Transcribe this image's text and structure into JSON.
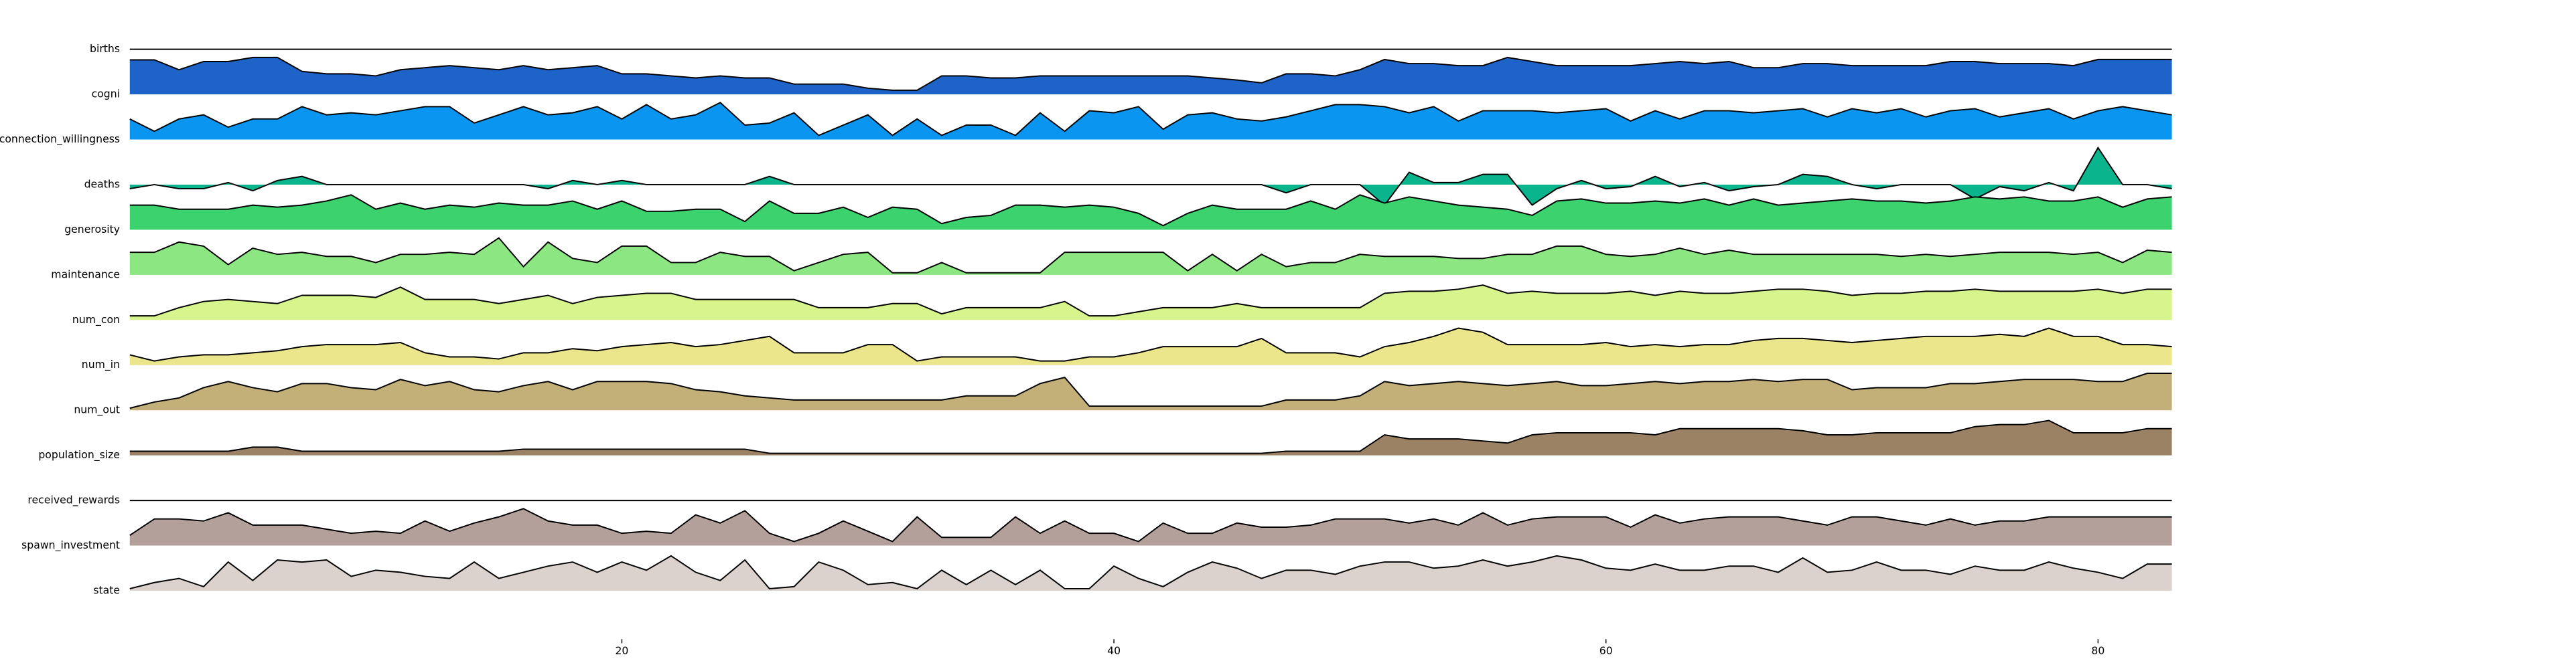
{
  "chart_data": {
    "type": "ridgeline",
    "x": [
      0,
      1,
      2,
      3,
      4,
      5,
      6,
      7,
      8,
      9,
      10,
      11,
      12,
      13,
      14,
      15,
      16,
      17,
      18,
      19,
      20,
      21,
      22,
      23,
      24,
      25,
      26,
      27,
      28,
      29,
      30,
      31,
      32,
      33,
      34,
      35,
      36,
      37,
      38,
      39,
      40,
      41,
      42,
      43,
      44,
      45,
      46,
      47,
      48,
      49,
      50,
      51,
      52,
      53,
      54,
      55,
      56,
      57,
      58,
      59,
      60,
      61,
      62,
      63,
      64,
      65,
      66,
      67,
      68,
      69,
      70,
      71,
      72,
      73,
      74,
      75,
      76,
      77,
      78,
      79,
      80,
      81,
      82,
      83
    ],
    "xlim": [
      0,
      83
    ],
    "xticks": [
      20,
      40,
      60,
      80
    ],
    "ylim": [
      0,
      10
    ],
    "series": [
      {
        "name": "births",
        "color": "#1f5fc8",
        "values": [
          0,
          0,
          0,
          0,
          0,
          0,
          0,
          0,
          0,
          0,
          0,
          0,
          0,
          0,
          0,
          0,
          0,
          0,
          0,
          0,
          0,
          0,
          0,
          0,
          0,
          0,
          0,
          0,
          0,
          0,
          0,
          0,
          0,
          0,
          0,
          0,
          0,
          0,
          0,
          0,
          0,
          0,
          0,
          0,
          0,
          0,
          0,
          0,
          0,
          0,
          0,
          0,
          0,
          0,
          0,
          0,
          0,
          0,
          0,
          0,
          0,
          0,
          0,
          0,
          0,
          0,
          0,
          0,
          0,
          0,
          0,
          0,
          0,
          0,
          0,
          0,
          0,
          0,
          0,
          0,
          0,
          0,
          0,
          0
        ]
      },
      {
        "name": "cogni",
        "color": "#1e64c8",
        "values": [
          8.4,
          8.4,
          6,
          8,
          8,
          9,
          9,
          5.6,
          5,
          5,
          4.5,
          6,
          6.5,
          7,
          6.5,
          6,
          7,
          6,
          6.5,
          7,
          5,
          5,
          4.5,
          4,
          4.5,
          4,
          4,
          2.5,
          2.5,
          2.5,
          1.5,
          1,
          1,
          4.5,
          4.5,
          4,
          4,
          4.5,
          4.5,
          4.5,
          4.5,
          4.5,
          4.5,
          4.5,
          4,
          3.5,
          2.8,
          5,
          5,
          4.5,
          6,
          8.5,
          7.5,
          7.5,
          7,
          7,
          9,
          8,
          7,
          7,
          7,
          7,
          7.5,
          8,
          7.5,
          8,
          6.5,
          6.5,
          7.5,
          7.5,
          7,
          7,
          7,
          7,
          8,
          8,
          7.5,
          7.5,
          7.5,
          7,
          8.5,
          8.5,
          8.5,
          8.5
        ]
      },
      {
        "name": "connection_willingness",
        "color": "#0a96f0",
        "values": [
          5,
          2,
          5,
          6,
          3,
          5,
          5,
          8,
          6,
          6.5,
          6,
          7,
          8,
          8,
          4,
          6,
          8,
          6,
          6.5,
          8,
          5,
          8.5,
          5,
          6,
          9,
          3.5,
          4,
          6.5,
          1,
          3.5,
          6,
          1,
          5,
          1,
          3.5,
          3.5,
          1,
          6.5,
          2,
          7,
          6.5,
          8,
          2.5,
          6,
          6.5,
          5,
          4.5,
          5.5,
          7,
          8.5,
          8.5,
          8,
          6.5,
          8,
          4.5,
          7,
          7,
          7,
          6.5,
          7,
          7.5,
          4.5,
          7,
          5,
          7,
          7,
          6.5,
          7,
          7.5,
          5.5,
          7.5,
          6.5,
          7.5,
          5.5,
          7,
          7.5,
          5.5,
          6.5,
          7.5,
          5,
          7,
          8,
          7,
          6
        ]
      },
      {
        "name": "deaths",
        "color": "#0ab48c",
        "values": [
          -1,
          0,
          -1,
          -1,
          0.5,
          -1.5,
          1,
          2,
          0,
          0,
          0,
          0,
          0,
          0,
          0,
          0,
          0,
          -1,
          1,
          0,
          1,
          0,
          0,
          0,
          0,
          0,
          2,
          0,
          0,
          0,
          0,
          0,
          0,
          0,
          0,
          0,
          0,
          0,
          0,
          0,
          0,
          0,
          0,
          0,
          0,
          0,
          0,
          -2,
          0,
          0,
          0,
          -5,
          3,
          0.5,
          0.5,
          2.5,
          2.5,
          -5,
          -1,
          1,
          -1,
          -0.5,
          2,
          -0.5,
          0.5,
          -1.5,
          -0.5,
          0,
          2.5,
          2,
          0,
          -1,
          0,
          0,
          0,
          -3.5,
          -0.5,
          -1.5,
          0.5,
          -1.5,
          9,
          0,
          0,
          -1
        ]
      },
      {
        "name": "generosity",
        "color": "#3cd26e",
        "values": [
          6,
          6,
          5,
          5,
          5,
          6,
          5.5,
          6,
          7,
          8.5,
          5,
          6.5,
          5,
          6,
          5.5,
          6.5,
          6,
          6,
          7,
          5,
          7,
          4.5,
          4.5,
          5,
          5,
          2,
          7,
          4,
          4,
          5.5,
          3,
          5.5,
          5,
          1.5,
          3,
          3.5,
          6,
          6,
          5.5,
          6,
          5.5,
          4,
          1,
          4,
          6,
          5,
          5,
          5,
          7,
          5,
          8.5,
          6.5,
          8,
          7,
          6,
          5.5,
          5,
          3.5,
          7,
          7.5,
          6.5,
          6.5,
          7,
          6.5,
          7.5,
          6,
          7.5,
          6,
          6.5,
          7,
          7.5,
          7,
          7,
          6.5,
          7,
          8,
          7.5,
          8,
          7,
          7,
          8,
          5.5,
          7.5,
          8
        ]
      },
      {
        "name": "maintenance",
        "color": "#8ce682",
        "values": [
          5.5,
          5.5,
          8,
          7,
          2.5,
          6.5,
          5,
          5.5,
          4.5,
          4.5,
          3,
          5,
          5,
          5.5,
          5,
          9,
          2,
          8,
          4,
          3,
          7,
          7,
          3,
          3,
          5.5,
          4.5,
          4.5,
          1,
          3,
          5,
          5.5,
          0.5,
          0.5,
          3,
          0.5,
          0.5,
          0.5,
          0.5,
          5.5,
          5.5,
          5.5,
          5.5,
          5.5,
          1,
          5,
          1,
          5,
          2,
          3,
          3,
          5,
          4.5,
          4.5,
          4.5,
          4,
          4,
          5,
          5,
          7,
          7,
          5,
          4.5,
          5,
          6.5,
          5,
          6,
          5,
          5,
          5,
          5,
          5,
          5,
          4.5,
          5,
          4.5,
          5,
          5.5,
          5.5,
          5.5,
          5,
          5.5,
          3,
          6,
          5.5
        ]
      },
      {
        "name": "num_con",
        "color": "#d7f58c",
        "values": [
          1,
          1,
          3,
          4.5,
          5,
          4.5,
          4,
          6,
          6,
          6,
          5.5,
          8,
          5,
          5,
          5,
          4,
          5,
          6,
          4,
          5.5,
          6,
          6.5,
          6.5,
          5,
          5,
          5,
          5,
          5,
          3,
          3,
          3,
          4,
          4,
          1.5,
          3,
          3,
          3,
          3,
          4.5,
          1,
          1,
          2,
          3,
          3,
          3,
          4,
          3,
          3,
          3,
          3,
          3,
          6.5,
          7,
          7,
          7.5,
          8.5,
          6.5,
          7,
          6.5,
          6.5,
          6.5,
          7,
          6,
          7,
          6.5,
          6.5,
          7,
          7.5,
          7.5,
          7,
          6,
          6.5,
          6.5,
          7,
          7,
          7.5,
          7,
          7,
          7,
          7,
          7.5,
          6.5,
          7.5,
          7.5
        ]
      },
      {
        "name": "num_in",
        "color": "#ebe68c",
        "values": [
          2.5,
          1,
          2,
          2.5,
          2.5,
          3,
          3.5,
          4.5,
          5,
          5,
          5,
          5.5,
          3,
          2,
          2,
          1.5,
          3,
          3,
          4,
          3.5,
          4.5,
          5,
          5.5,
          4.5,
          5,
          6,
          7,
          3,
          3,
          3,
          5,
          5,
          1,
          2,
          2,
          2,
          2,
          1,
          1,
          2,
          2,
          3,
          4.5,
          4.5,
          4.5,
          4.5,
          6.5,
          3,
          3,
          3,
          2,
          4.5,
          5.5,
          7,
          9,
          8,
          5,
          5,
          5,
          5,
          5.5,
          4.5,
          5,
          4.5,
          5,
          5,
          6,
          6.5,
          6.5,
          6,
          5.5,
          6,
          6.5,
          7,
          7,
          7,
          7.5,
          7,
          9,
          7,
          7,
          5,
          5,
          4.5
        ]
      },
      {
        "name": "num_out",
        "color": "#c3af78",
        "values": [
          0.5,
          2,
          3,
          5.5,
          7,
          5.5,
          4.5,
          6.5,
          6.5,
          5.5,
          5,
          7.5,
          6,
          7,
          5,
          4.5,
          6,
          7,
          5,
          7,
          7,
          7,
          6.5,
          5,
          4.5,
          3.5,
          3,
          2.5,
          2.5,
          2.5,
          2.5,
          2.5,
          2.5,
          2.5,
          3.5,
          3.5,
          3.5,
          6.5,
          8,
          1,
          1,
          1,
          1,
          1,
          1,
          1,
          1,
          2.5,
          2.5,
          2.5,
          3.5,
          7,
          6,
          6.5,
          7,
          6.5,
          6,
          6.5,
          7,
          6,
          6,
          6.5,
          7,
          6.5,
          7,
          7,
          7.5,
          7,
          7.5,
          7.5,
          5,
          5.5,
          5.5,
          5.5,
          6.5,
          6.5,
          7,
          7.5,
          7.5,
          7.5,
          7,
          7,
          9,
          9
        ]
      },
      {
        "name": "population_size",
        "color": "#9b8264",
        "values": [
          1,
          1,
          1,
          1,
          1,
          2,
          2,
          1,
          1,
          1,
          1,
          1,
          1,
          1,
          1,
          1,
          1.5,
          1.5,
          1.5,
          1.5,
          1.5,
          1.5,
          1.5,
          1.5,
          1.5,
          1.5,
          0.5,
          0.5,
          0.5,
          0.5,
          0.5,
          0.5,
          0.5,
          0.5,
          0.5,
          0.5,
          0.5,
          0.5,
          0.5,
          0.5,
          0.5,
          0.5,
          0.5,
          0.5,
          0.5,
          0.5,
          0.5,
          1,
          1,
          1,
          1,
          5,
          4,
          4,
          4,
          3.5,
          3,
          5,
          5.5,
          5.5,
          5.5,
          5.5,
          5,
          6.5,
          6.5,
          6.5,
          6.5,
          6.5,
          6,
          5,
          5,
          5.5,
          5.5,
          5.5,
          5.5,
          7,
          7.5,
          7.5,
          8.5,
          5.5,
          5.5,
          5.5,
          6.5,
          6.5
        ]
      },
      {
        "name": "received_rewards",
        "color": "#a0908a",
        "values": [
          0,
          0,
          0,
          0,
          0,
          0,
          0,
          0,
          0,
          0,
          0,
          0,
          0,
          0,
          0,
          0,
          0,
          0,
          0,
          0,
          0,
          0,
          0,
          0,
          0,
          0,
          0,
          0,
          0,
          0,
          0,
          0,
          0,
          0,
          0,
          0,
          0,
          0,
          0,
          0,
          0,
          0,
          0,
          0,
          0,
          0,
          0,
          0,
          0,
          0,
          0,
          0,
          0,
          0,
          0,
          0,
          0,
          0,
          0,
          0,
          0,
          0,
          0,
          0,
          0,
          0,
          0,
          0,
          0,
          0,
          0,
          0,
          0,
          0,
          0,
          0,
          0,
          0,
          0,
          0,
          0,
          0,
          0,
          0
        ]
      },
      {
        "name": "spawn_investment",
        "color": "#b4a09b",
        "values": [
          2.5,
          6.5,
          6.5,
          6,
          8,
          5,
          5,
          5,
          4,
          3,
          3.5,
          3,
          6,
          3.5,
          5.5,
          7,
          9,
          6,
          5,
          5,
          3,
          3.5,
          3,
          7.5,
          5.5,
          8.5,
          3,
          1,
          3,
          6,
          3.5,
          1,
          7,
          2,
          2,
          2,
          7,
          3,
          6,
          3,
          3,
          1,
          5.5,
          3,
          3,
          5.5,
          4.5,
          4.5,
          5,
          6.5,
          6.5,
          6.5,
          5.5,
          6.5,
          5,
          8,
          5,
          6.5,
          7,
          7,
          7,
          4.5,
          7.5,
          5.5,
          6.5,
          7,
          7,
          7,
          6,
          5,
          7,
          7,
          6,
          5,
          6.5,
          5,
          6,
          6,
          7,
          7,
          7,
          7,
          7,
          7
        ]
      },
      {
        "name": "state",
        "color": "#dcd2cd",
        "values": [
          0.5,
          2,
          3,
          1,
          7,
          2.5,
          7.5,
          7,
          7.5,
          3.5,
          5,
          4.5,
          3.5,
          3,
          7,
          3,
          4.5,
          6,
          7,
          4.5,
          7,
          5,
          8.5,
          4.5,
          2.5,
          7.5,
          0.5,
          1,
          7,
          5,
          1.5,
          2,
          0.5,
          5,
          1.5,
          5,
          1.5,
          5,
          0.5,
          0.5,
          6,
          3,
          1,
          4.5,
          7,
          5.5,
          3,
          5,
          5,
          4,
          6,
          7,
          7,
          5.5,
          6,
          7.5,
          6,
          7,
          8.5,
          7.5,
          5.5,
          5,
          6.5,
          5,
          5,
          6,
          6,
          4.5,
          8,
          4.5,
          5,
          7,
          5,
          5,
          4,
          6,
          5,
          5,
          7,
          5.5,
          4.5,
          3,
          6.5,
          6.5
        ]
      }
    ]
  }
}
